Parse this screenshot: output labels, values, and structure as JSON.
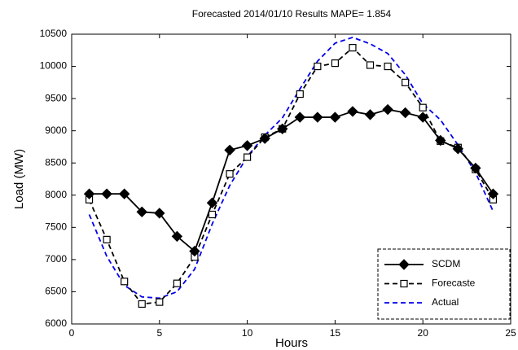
{
  "chart_data": {
    "type": "line",
    "title": "Forecasted 2014/01/10 Results MAPE= 1.854",
    "xlabel": "Hours",
    "ylabel": "Load (MW)",
    "x": [
      1,
      2,
      3,
      4,
      5,
      6,
      7,
      8,
      9,
      10,
      11,
      12,
      13,
      14,
      15,
      16,
      17,
      18,
      19,
      20,
      21,
      22,
      23,
      24
    ],
    "series": [
      {
        "name": "SCDM",
        "color": "#000000",
        "marker": "diamond",
        "dash": "solid",
        "values": [
          8020,
          8020,
          8020,
          7740,
          7720,
          7360,
          7130,
          7880,
          8700,
          8770,
          8880,
          9030,
          9210,
          9210,
          9210,
          9300,
          9250,
          9330,
          9280,
          9210,
          8850,
          8720,
          8420,
          8020
        ]
      },
      {
        "name": "Forecaste",
        "color": "#000000",
        "marker": "square",
        "dash": "dashed",
        "values": [
          7930,
          7310,
          6660,
          6310,
          6340,
          6630,
          7040,
          7700,
          8330,
          8590,
          8900,
          9030,
          9570,
          10000,
          10050,
          10290,
          10020,
          10000,
          9750,
          9360,
          8840,
          8740,
          8400,
          7930
        ]
      },
      {
        "name": "Actual",
        "color": "#0000ee",
        "marker": "none",
        "dash": "dashed",
        "values": [
          7700,
          7050,
          6600,
          6420,
          6400,
          6500,
          6850,
          7550,
          8150,
          8600,
          8930,
          9200,
          9650,
          10080,
          10360,
          10450,
          10350,
          10200,
          9870,
          9420,
          9170,
          8780,
          8350,
          7750
        ]
      }
    ],
    "xlim": [
      0,
      25
    ],
    "xticks": [
      0,
      5,
      10,
      15,
      20,
      25
    ],
    "ylim": [
      6000,
      10500
    ],
    "yticks": [
      6000,
      6500,
      7000,
      7500,
      8000,
      8500,
      9000,
      9500,
      10000,
      10500
    ],
    "grid": false,
    "legend": "lower right"
  }
}
